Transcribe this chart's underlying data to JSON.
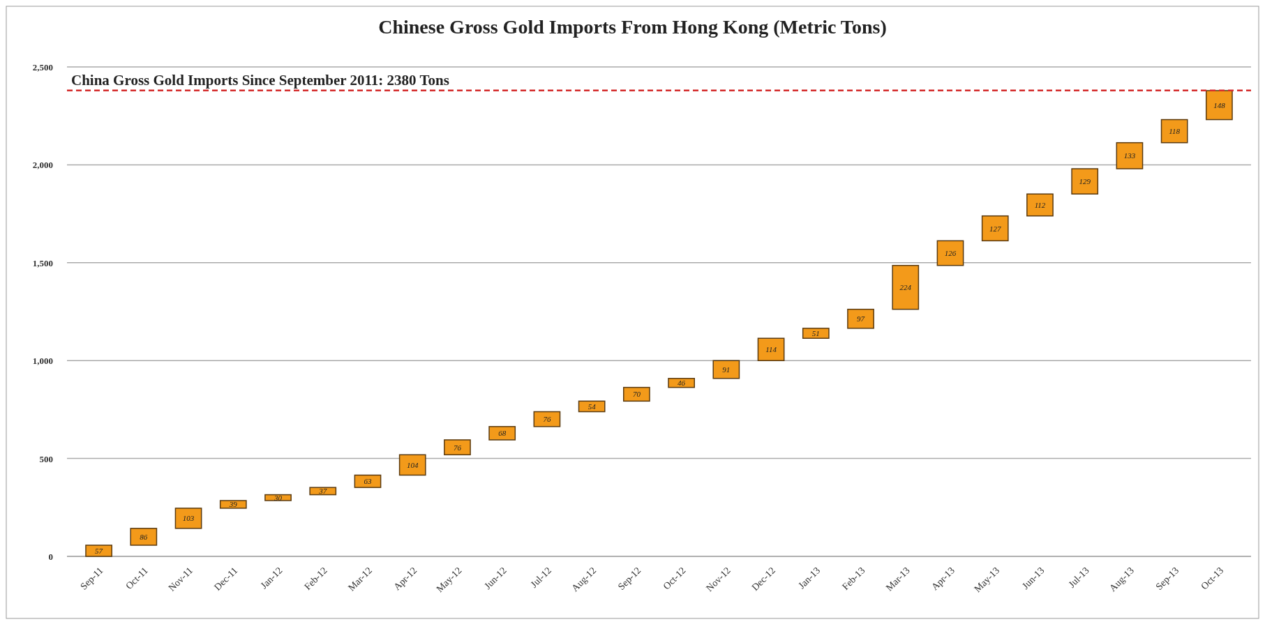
{
  "chart_data": {
    "type": "bar",
    "title": "Chinese Gross Gold Imports From Hong Kong (Metric Tons)",
    "categories": [
      "Sep-11",
      "Oct-11",
      "Nov-11",
      "Dec-11",
      "Jan-12",
      "Feb-12",
      "Mar-12",
      "Apr-12",
      "May-12",
      "Jun-12",
      "Jul-12",
      "Aug-12",
      "Sep-12",
      "Oct-12",
      "Nov-12",
      "Dec-12",
      "Jan-13",
      "Feb-13",
      "Mar-13",
      "Apr-13",
      "May-13",
      "Jun-13",
      "Jul-13",
      "Aug-13",
      "Sep-13",
      "Oct-13"
    ],
    "values": [
      57,
      86,
      103,
      39,
      30,
      37,
      63,
      104,
      76,
      68,
      76,
      54,
      70,
      46,
      91,
      114,
      51,
      97,
      224,
      126,
      127,
      112,
      129,
      133,
      118,
      148
    ],
    "base": [
      0,
      57,
      143,
      246,
      285,
      315,
      352,
      415,
      519,
      595,
      663,
      739,
      793,
      863,
      909,
      1000,
      1114,
      1165,
      1262,
      1486,
      1612,
      1739,
      1851,
      1980,
      2113,
      2231
    ],
    "color": "#f39a1a",
    "data_labels": true,
    "ylim": [
      0,
      2500
    ],
    "yticks": [
      0,
      500,
      {
        "value": 1000,
        "label": "1,000"
      },
      {
        "value": 1500,
        "label": "1,500"
      },
      {
        "value": 2000,
        "label": "2,000"
      },
      {
        "value": 2500,
        "label": "2,500"
      }
    ],
    "grid": "y",
    "ref_lines": [
      {
        "axis": "y",
        "value": 2380,
        "label": "China Gross Gold Imports Since September 2011: 2380 Tons",
        "color": "#d42a2a",
        "line_style": "dashed"
      }
    ]
  }
}
